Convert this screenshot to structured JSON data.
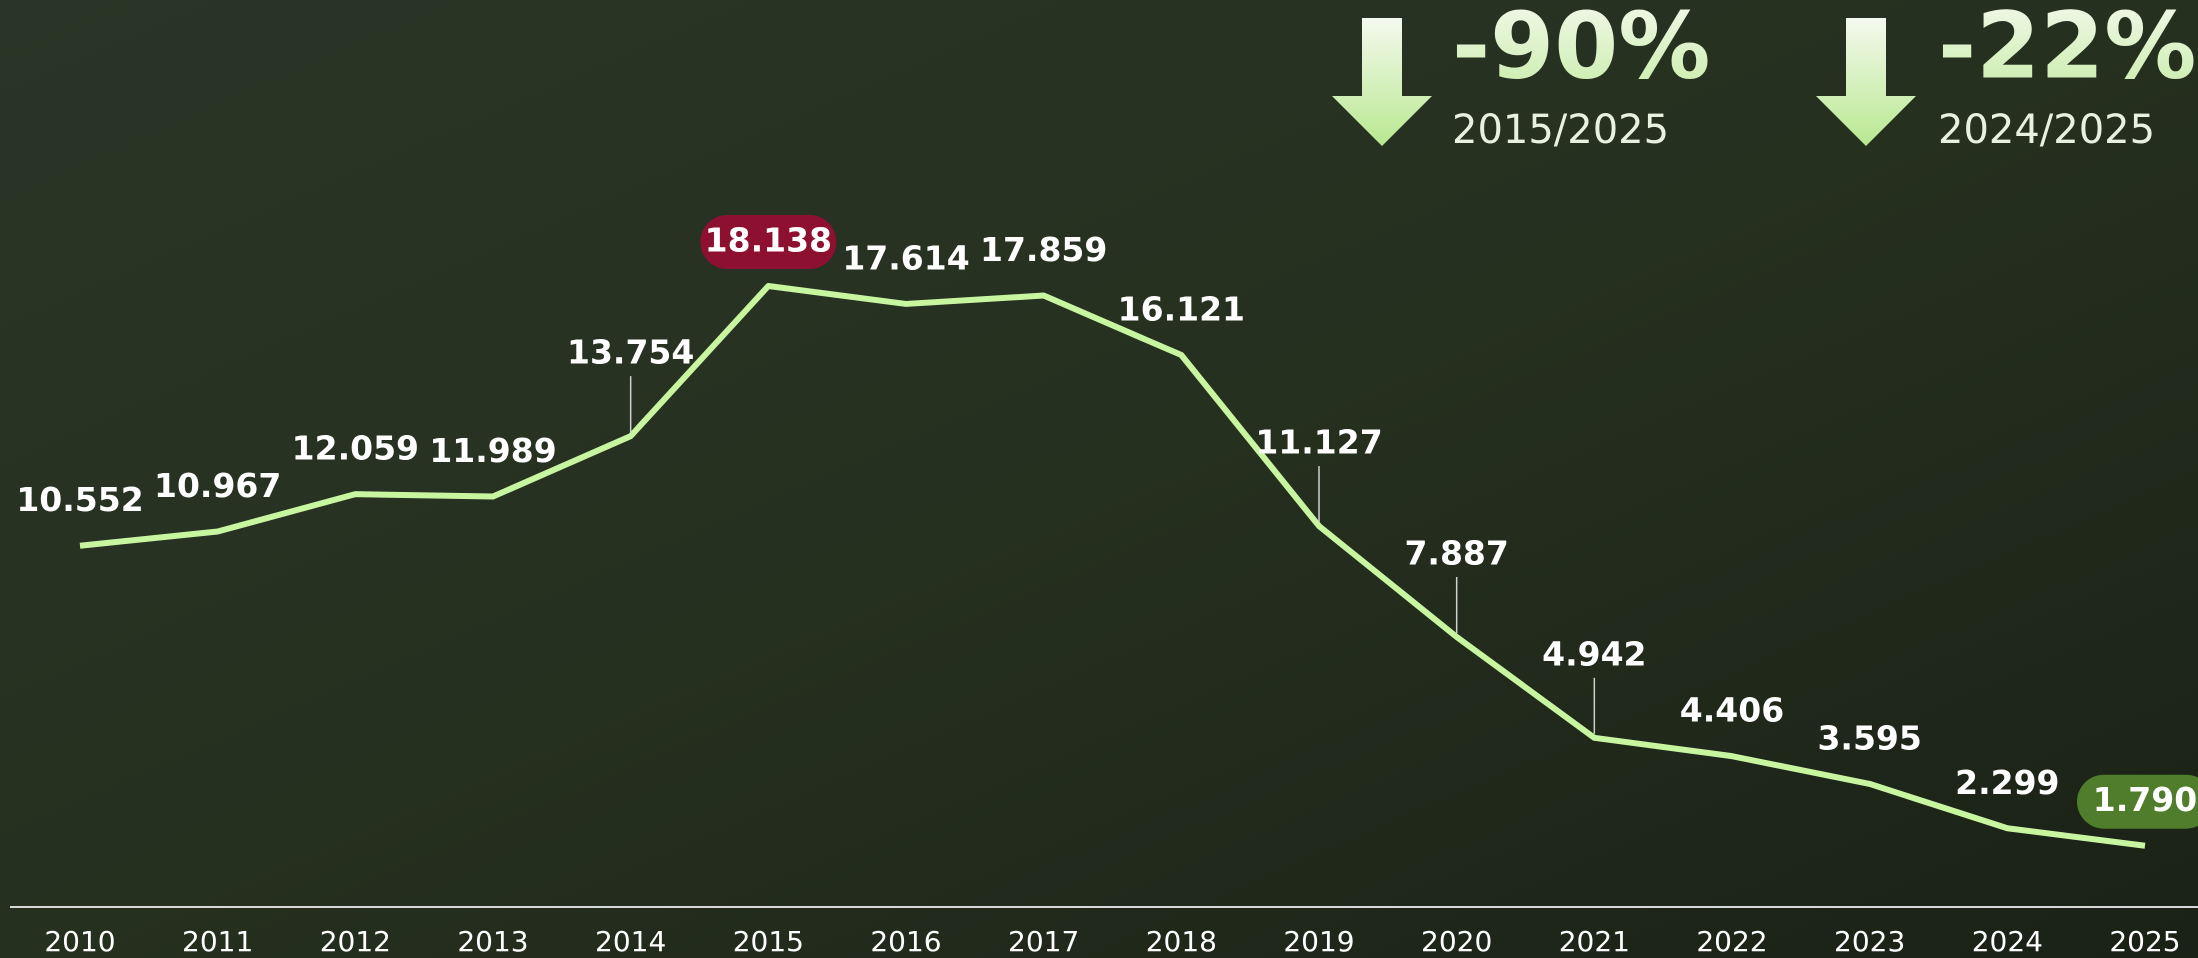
{
  "chart_data": {
    "type": "line",
    "categories": [
      "2010",
      "2011",
      "2012",
      "2013",
      "2014",
      "2015",
      "2016",
      "2017",
      "2018",
      "2019",
      "2020",
      "2021",
      "2022",
      "2023",
      "2024",
      "2025"
    ],
    "values": [
      10552,
      10967,
      12059,
      11989,
      13754,
      18138,
      17614,
      17859,
      16121,
      11127,
      7887,
      4942,
      4406,
      3595,
      2299,
      1790
    ],
    "value_labels": [
      "10.552",
      "10.967",
      "12.059",
      "11.989",
      "13.754",
      "18.138",
      "17.614",
      "17.859",
      "16.121",
      "11.127",
      "7.887",
      "4.942",
      "4.406",
      "3.595",
      "2.299",
      "1.790"
    ],
    "color": "#c8f5a0",
    "max_highlight_color": "#8e1030",
    "last_highlight_color": "#4f7d2c",
    "annotations": [
      {
        "text": "-90%",
        "period": "2015/2025"
      },
      {
        "text": "-22%",
        "period": "2024/2025"
      }
    ]
  }
}
